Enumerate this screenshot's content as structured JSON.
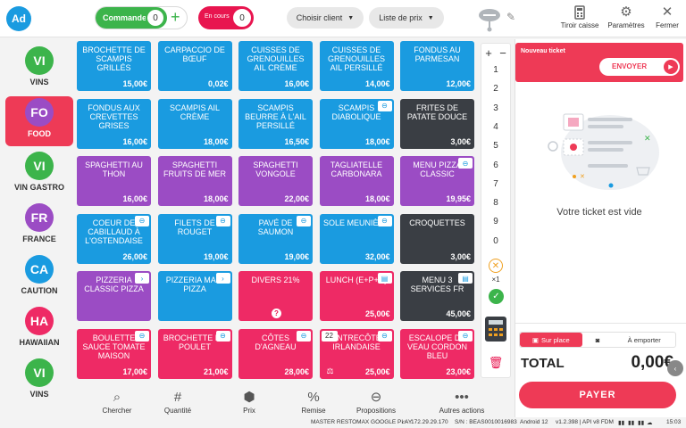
{
  "header": {
    "avatar": "Ad",
    "orders_label": "Commandes",
    "orders_count": "0",
    "in_progress_label": "En cours",
    "in_progress_count": "0",
    "client_select": "Choisir client",
    "price_list_select": "Liste de prix",
    "cash_drawer": "Tiroir caisse",
    "settings": "Paramètres",
    "close": "Fermer"
  },
  "categories": [
    {
      "abbr": "VI",
      "name": "VINS",
      "color": "#3cb44b"
    },
    {
      "abbr": "FO",
      "name": "FOOD",
      "color": "#9b4cc4",
      "active": true
    },
    {
      "abbr": "VI",
      "name": "VIN GASTRO",
      "color": "#3cb44b"
    },
    {
      "abbr": "FR",
      "name": "FRANCE",
      "color": "#9b4cc4"
    },
    {
      "abbr": "CA",
      "name": "CAUTION",
      "color": "#1a9be0"
    },
    {
      "abbr": "HA",
      "name": "HAWAIIAN",
      "color": "#ee2a65"
    },
    {
      "abbr": "VI",
      "name": "VINS",
      "color": "#3cb44b"
    }
  ],
  "products": [
    {
      "name": "Brochette de scampis grillés",
      "price": "15,00€",
      "color": "blue"
    },
    {
      "name": "Carpaccio de bœuf",
      "price": "0,02€",
      "color": "blue"
    },
    {
      "name": "Cuisses de grenouilles ail crème",
      "price": "16,00€",
      "color": "blue"
    },
    {
      "name": "Cuisses de grenouilles ail persillé",
      "price": "14,00€",
      "color": "blue"
    },
    {
      "name": "Fondus au parmesan",
      "price": "12,00€",
      "color": "blue"
    },
    {
      "name": "Fondus aux crevettes grises",
      "price": "16,00€",
      "color": "blue"
    },
    {
      "name": "Scampis ail crème",
      "price": "18,00€",
      "color": "blue"
    },
    {
      "name": "Scampis beurre à l'ail persillé",
      "price": "16,50€",
      "color": "blue"
    },
    {
      "name": "Scampis diabolique",
      "price": "18,00€",
      "color": "blue",
      "tag": "link"
    },
    {
      "name": "Frites de patate douce",
      "price": "3,00€",
      "color": "dark"
    },
    {
      "name": "Spaghetti au thon",
      "price": "16,00€",
      "color": "purple"
    },
    {
      "name": "Spaghetti fruits de mer",
      "price": "18,00€",
      "color": "purple"
    },
    {
      "name": "Spaghetti vongole",
      "price": "22,00€",
      "color": "purple"
    },
    {
      "name": "Tagliatelle carbonara",
      "price": "18,00€",
      "color": "purple"
    },
    {
      "name": "Menu pizza classic",
      "price": "19,95€",
      "color": "purple",
      "tag": "link"
    },
    {
      "name": "Coeur de cabillaud à l'ostendaise",
      "price": "26,00€",
      "color": "blue",
      "tag": "link"
    },
    {
      "name": "Filets de rouget",
      "price": "19,00€",
      "color": "blue",
      "tag": "link"
    },
    {
      "name": "Pavé de saumon",
      "price": "19,00€",
      "color": "blue",
      "tag": "link"
    },
    {
      "name": "Sole meunière",
      "price": "32,00€",
      "color": "blue",
      "tag": "link"
    },
    {
      "name": "Croquettes",
      "price": "3,00€",
      "color": "dark"
    },
    {
      "name": "Pizzeria classic pizza",
      "price": "",
      "color": "purple",
      "tag": "chevron"
    },
    {
      "name": "Pizzeria maxi pizza",
      "price": "",
      "color": "blue",
      "tag": "chevron"
    },
    {
      "name": "Divers 21%",
      "price": "",
      "color": "pink",
      "question": "?"
    },
    {
      "name": "Lunch (E+P+D)",
      "price": "25,00€",
      "color": "pink",
      "tag": "book"
    },
    {
      "name": "Menu 3 services FR",
      "price": "45,00€",
      "color": "dark",
      "tag": "book"
    },
    {
      "name": "Boulette sauce tomate maison",
      "price": "17,00€",
      "color": "pink",
      "tag": "link"
    },
    {
      "name": "Brochette de poulet",
      "price": "21,00€",
      "color": "pink",
      "tag": "link"
    },
    {
      "name": "Côtes d'agneau",
      "price": "28,00€",
      "color": "pink",
      "tag": "link"
    },
    {
      "name": "Entrecôte irlandaise",
      "price": "25,00€",
      "color": "pink",
      "tag": "link",
      "count": "22",
      "bottom_icon": "scale"
    },
    {
      "name": "Escalope de veau cordon bleu",
      "price": "23,00€",
      "color": "pink",
      "tag": "link"
    }
  ],
  "keypad": {
    "plus": "+",
    "minus": "−",
    "digits": [
      "1",
      "2",
      "3",
      "4",
      "5",
      "6",
      "7",
      "8",
      "9",
      "0"
    ],
    "cancel": "✕",
    "multiplier": "×1",
    "confirm": "✓"
  },
  "toolbar": [
    {
      "icon": "search-icon",
      "label": "Chercher"
    },
    {
      "icon": "hash-icon",
      "label": "Quantité"
    },
    {
      "icon": "tag-icon",
      "label": "Prix"
    },
    {
      "icon": "percent-icon",
      "label": "Remise"
    },
    {
      "icon": "link-icon",
      "label": "Propositions"
    },
    {
      "icon": "more-icon",
      "label": "Autres actions"
    }
  ],
  "ticket": {
    "title": "Nouveau ticket",
    "send_label": "ENVOYER",
    "empty_text": "Votre ticket est vide",
    "mode_on_site": "Sur place",
    "mode_takeaway": "À emporter",
    "total_label": "TOTAL",
    "total_value": "0,00€",
    "pay_label": "PAYER"
  },
  "status": {
    "device": "MASTER RESTOMAX GOOGLE PLAY",
    "ip": "172.29.29.170",
    "serial": "S/N : BEAS0010016983",
    "android": "Android 12",
    "version": "v1.2.398 | API v8 FDM",
    "time": "15:03"
  },
  "colors": {
    "accent": "#ee3a56",
    "blue": "#1a9be0",
    "purple": "#9b4cc4",
    "green": "#3cb44b",
    "dark": "#3a3e44",
    "pink": "#ee2a65"
  }
}
